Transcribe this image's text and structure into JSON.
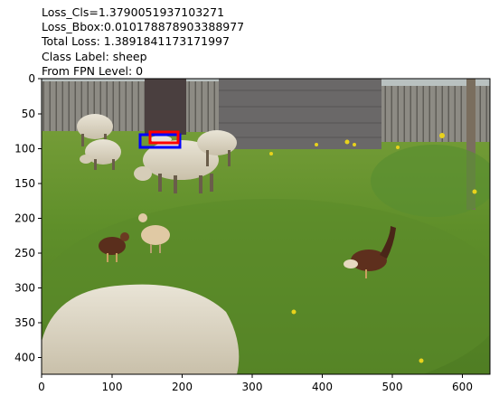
{
  "title_lines": [
    "Loss_Cls=1.3790051937103271",
    "Loss_Bbox:0.010178878903388977",
    "Total Loss: 1.3891841173171997",
    "Class Label: sheep",
    "From FPN Level: 0"
  ],
  "axes": {
    "x_ticks": [
      "0",
      "100",
      "200",
      "300",
      "400",
      "500",
      "600"
    ],
    "y_ticks": [
      "0",
      "50",
      "100",
      "150",
      "200",
      "250",
      "300",
      "350",
      "400"
    ]
  },
  "boxes": [
    {
      "name": "blue-box",
      "color": "#0000ff"
    },
    {
      "name": "red-box",
      "color": "#ff0000"
    }
  ]
}
